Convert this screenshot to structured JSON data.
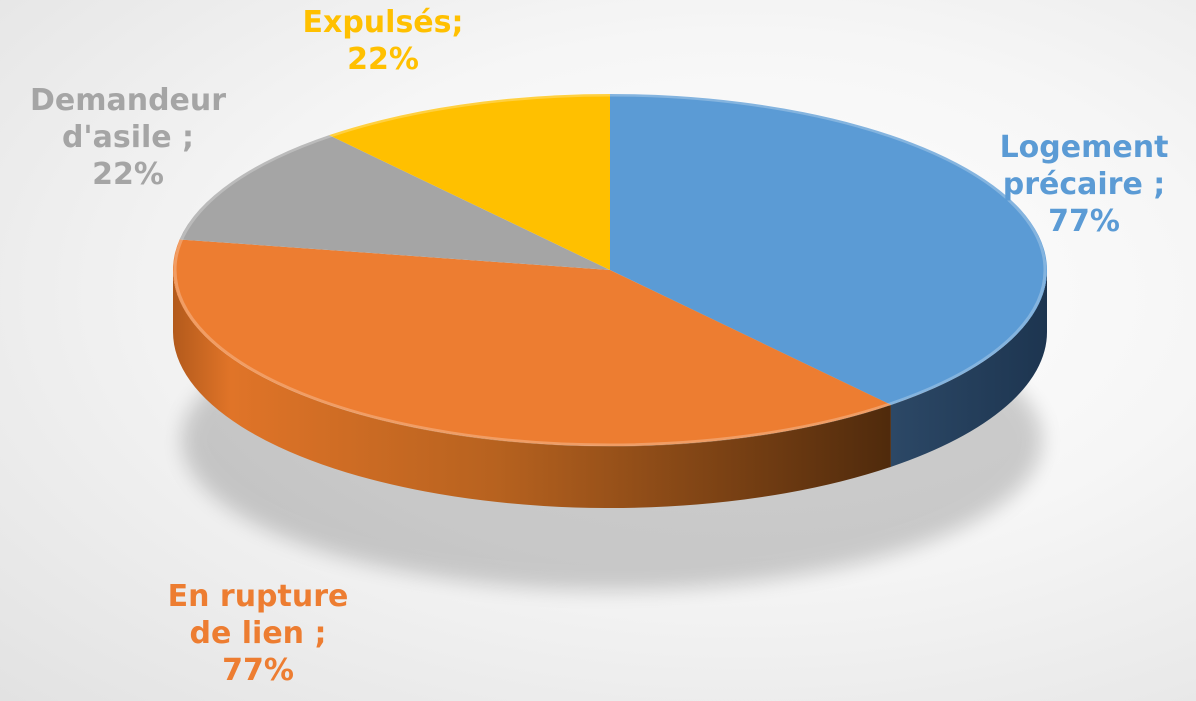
{
  "chart_data": {
    "type": "pie",
    "style": "3d",
    "title": "",
    "slices": [
      {
        "label": "Logement précaire ;",
        "value_text": "77%",
        "value": 77,
        "color": "#5b9bd5",
        "label_lines": [
          "Logement",
          "précaire ;",
          "77%"
        ]
      },
      {
        "label": "En rupture de lien ;",
        "value_text": "77%",
        "value": 77,
        "color": "#ed7d31",
        "label_lines": [
          "En rupture",
          "de lien ;",
          "77%"
        ]
      },
      {
        "label": "Demandeur d'asile ;",
        "value_text": "22%",
        "value": 22,
        "color": "#a5a5a5",
        "label_lines": [
          "Demandeur",
          "d'asile ;",
          "22%"
        ]
      },
      {
        "label": "Expulsés;",
        "value_text": "22%",
        "value": 22,
        "color": "#ffc000",
        "label_lines": [
          "Expulsés;",
          "22%"
        ]
      }
    ],
    "start_angle_deg": 0,
    "direction": "clockwise",
    "legend": "none",
    "data_labels": "outside"
  }
}
